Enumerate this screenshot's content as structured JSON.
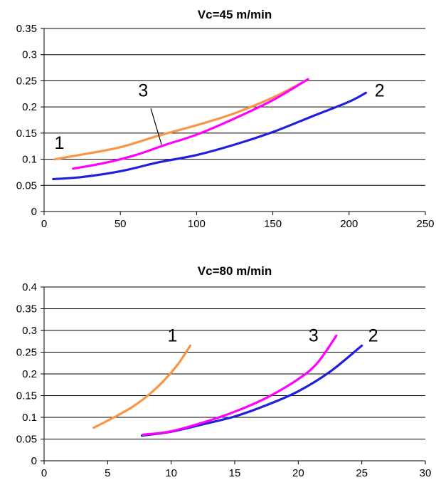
{
  "chart_data": [
    {
      "type": "line",
      "title": "Vc=45 m/min",
      "xlabel": "",
      "ylabel": "",
      "xlim": [
        0,
        250
      ],
      "ylim": [
        0,
        0.35
      ],
      "xticks": [
        "0",
        "50",
        "100",
        "150",
        "200",
        "250"
      ],
      "yticks": [
        "0",
        "0.05",
        "0.1",
        "0.15",
        "0.2",
        "0.25",
        "0.3",
        "0.35"
      ],
      "grid": "horizontal",
      "legend": "none",
      "series": [
        {
          "label": "1",
          "color": "#f79646",
          "points": [
            [
              7,
              0.1
            ],
            [
              25,
              0.109
            ],
            [
              50,
              0.123
            ],
            [
              75,
              0.145
            ],
            [
              100,
              0.165
            ],
            [
              125,
              0.188
            ],
            [
              150,
              0.218
            ],
            [
              173,
              0.252
            ]
          ]
        },
        {
          "label": "2",
          "color": "#1f1fdd",
          "points": [
            [
              6,
              0.062
            ],
            [
              25,
              0.066
            ],
            [
              50,
              0.077
            ],
            [
              75,
              0.094
            ],
            [
              100,
              0.108
            ],
            [
              125,
              0.128
            ],
            [
              150,
              0.152
            ],
            [
              175,
              0.181
            ],
            [
              200,
              0.21
            ],
            [
              211,
              0.227
            ]
          ]
        },
        {
          "label": "3",
          "color": "#ff00ff",
          "points": [
            [
              19,
              0.082
            ],
            [
              40,
              0.093
            ],
            [
              60,
              0.108
            ],
            [
              80,
              0.128
            ],
            [
              100,
              0.147
            ],
            [
              125,
              0.178
            ],
            [
              150,
              0.213
            ],
            [
              173,
              0.253
            ]
          ]
        }
      ],
      "annotations": [
        {
          "text": "1",
          "x": 10,
          "y": 0.12
        },
        {
          "text": "2",
          "x": 220,
          "y": 0.22
        },
        {
          "text": "3",
          "x": 65,
          "y": 0.22
        }
      ]
    },
    {
      "type": "line",
      "title": "Vc=80 m/min",
      "xlabel": "",
      "ylabel": "",
      "xlim": [
        0,
        30
      ],
      "ylim": [
        0,
        0.4
      ],
      "xticks": [
        "0",
        "5",
        "10",
        "15",
        "20",
        "25",
        "30"
      ],
      "yticks": [
        "0",
        "0.05",
        "0.1",
        "0.15",
        "0.2",
        "0.25",
        "0.3",
        "0.35",
        "0.4"
      ],
      "grid": "horizontal",
      "legend": "none",
      "series": [
        {
          "label": "1",
          "color": "#f79646",
          "points": [
            [
              3.9,
              0.076
            ],
            [
              5.5,
              0.1
            ],
            [
              7,
              0.125
            ],
            [
              8.4,
              0.156
            ],
            [
              9.6,
              0.19
            ],
            [
              10.6,
              0.225
            ],
            [
              11.5,
              0.265
            ]
          ]
        },
        {
          "label": "2",
          "color": "#1f1fdd",
          "points": [
            [
              7.7,
              0.058
            ],
            [
              10,
              0.067
            ],
            [
              12.5,
              0.084
            ],
            [
              15,
              0.102
            ],
            [
              17.5,
              0.128
            ],
            [
              20,
              0.16
            ],
            [
              22.5,
              0.205
            ],
            [
              25,
              0.265
            ]
          ]
        },
        {
          "label": "3",
          "color": "#ff00ff",
          "points": [
            [
              7.8,
              0.06
            ],
            [
              10,
              0.068
            ],
            [
              12.5,
              0.088
            ],
            [
              15,
              0.113
            ],
            [
              17.5,
              0.145
            ],
            [
              20,
              0.188
            ],
            [
              21.5,
              0.225
            ],
            [
              23,
              0.288
            ]
          ]
        }
      ],
      "annotations": [
        {
          "text": "1",
          "x": 10.1,
          "y": 0.275
        },
        {
          "text": "2",
          "x": 25.9,
          "y": 0.275
        },
        {
          "text": "3",
          "x": 21.2,
          "y": 0.275
        }
      ]
    }
  ]
}
